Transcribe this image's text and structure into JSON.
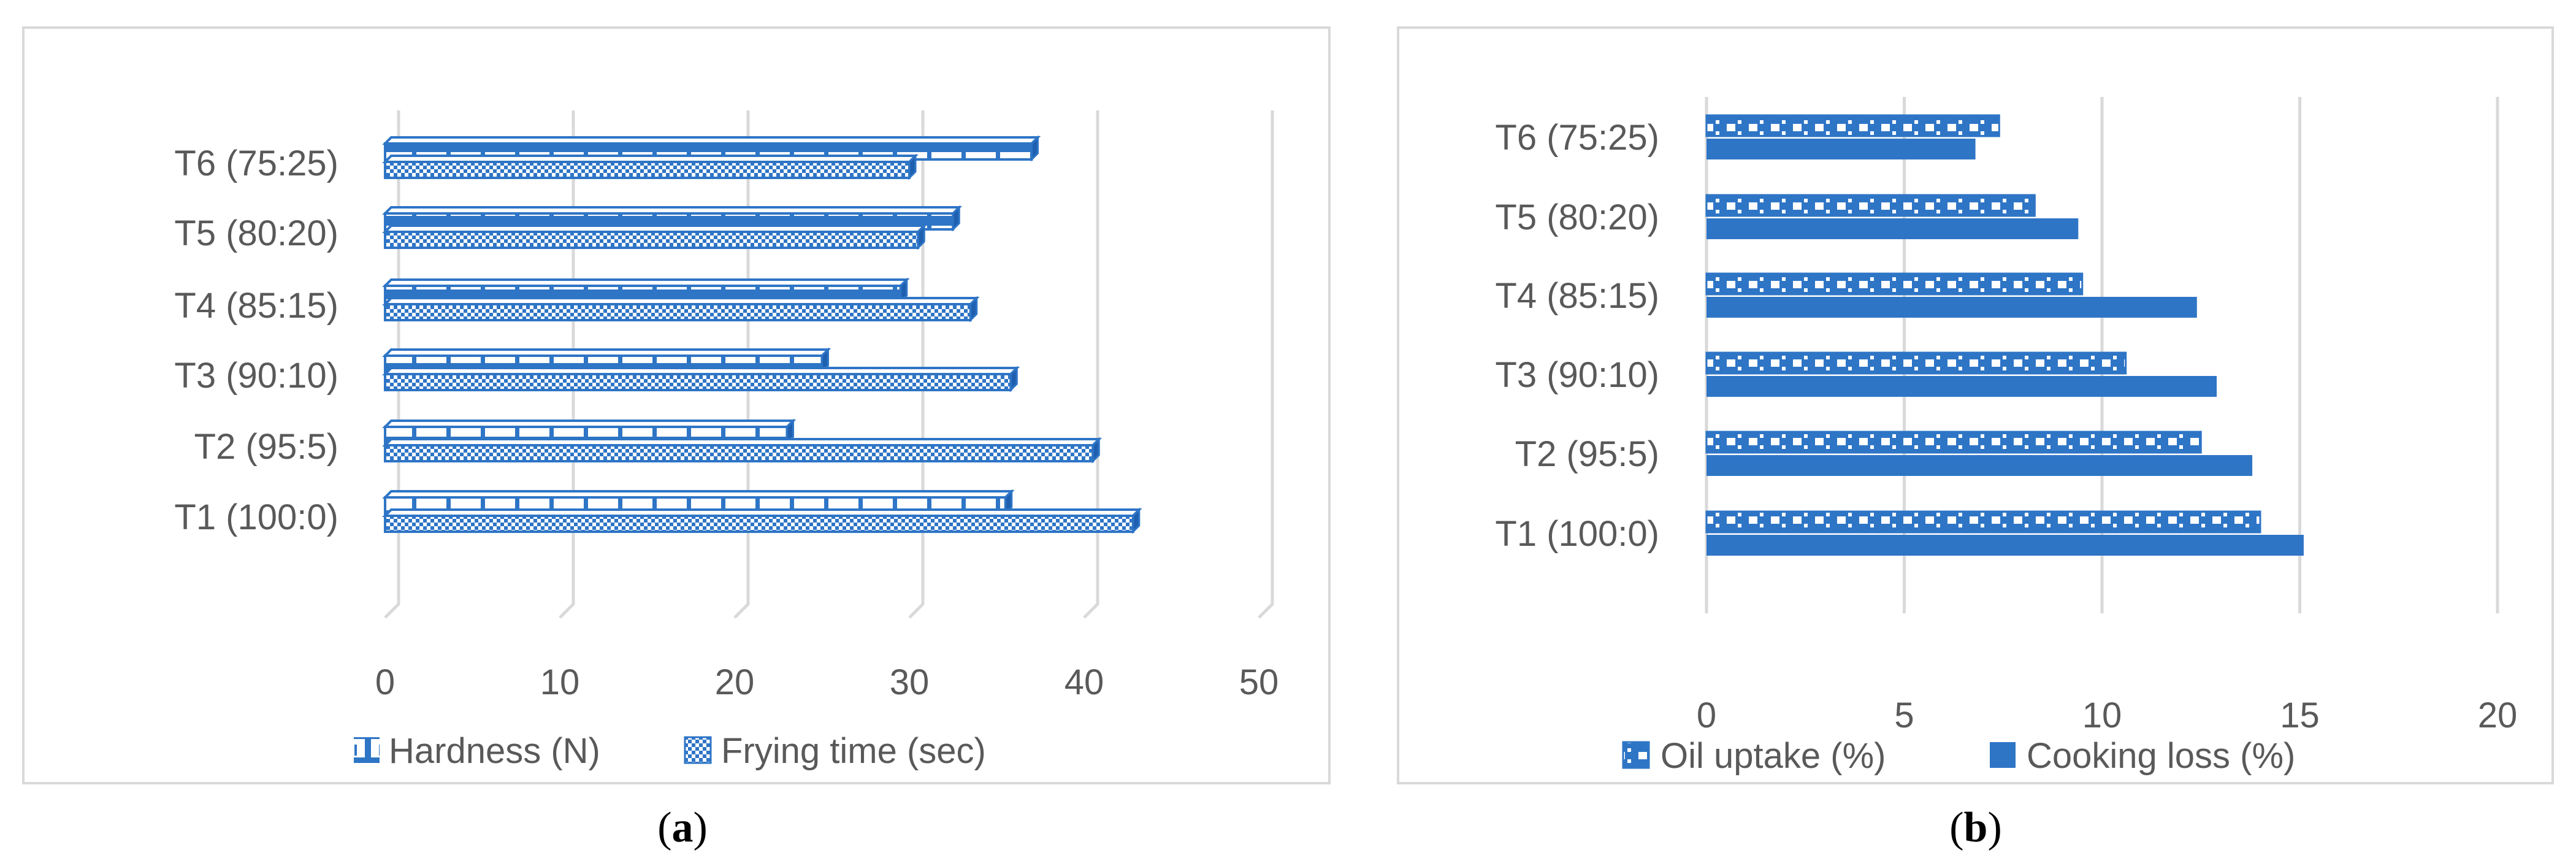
{
  "colors": {
    "accent": "#2E75C6",
    "dark_blue": "#1F5FAF",
    "grid": "#D9D9D9",
    "text": "#595959",
    "frame": "#D9D9D9"
  },
  "chart_data": [
    {
      "type": "bar",
      "orientation": "horizontal",
      "style": "3d",
      "panel_label": "(a)",
      "panel_letter": "a",
      "categories": [
        "T1 (100:0)",
        "T2 (95:5)",
        "T3 (90:10)",
        "T4 (85:15)",
        "T5 (80:20)",
        "T6 (75:25)"
      ],
      "series": [
        {
          "name": "Hardness (N)",
          "values": [
            35.5,
            23,
            25,
            29.5,
            32.5,
            37
          ],
          "pattern": "hardness"
        },
        {
          "name": "Frying time (sec)",
          "values": [
            42.8,
            40.5,
            35.8,
            33.5,
            30.5,
            30
          ],
          "pattern": "checker"
        }
      ],
      "x_ticks": [
        0,
        10,
        20,
        30,
        40,
        50
      ],
      "xlim": [
        0,
        50
      ],
      "grid": true,
      "legend_position": "bottom"
    },
    {
      "type": "bar",
      "orientation": "horizontal",
      "style": "flat",
      "panel_label": "(b)",
      "panel_letter": "b",
      "categories": [
        "T1 (100:0)",
        "T2 (95:5)",
        "T3 (90:10)",
        "T4 (85:15)",
        "T5 (80:20)",
        "T6 (75:25)"
      ],
      "series": [
        {
          "name": "Oil uptake (%)",
          "values": [
            14,
            12.5,
            10.6,
            9.5,
            8.3,
            7.4
          ],
          "pattern": "checker"
        },
        {
          "name": "Cooking loss (%)",
          "values": [
            15.1,
            13.8,
            12.9,
            12.4,
            9.4,
            6.8
          ],
          "pattern": "solid"
        }
      ],
      "x_ticks": [
        0,
        5,
        10,
        15,
        20
      ],
      "xlim": [
        0,
        20
      ],
      "grid": true,
      "legend_position": "bottom"
    }
  ]
}
